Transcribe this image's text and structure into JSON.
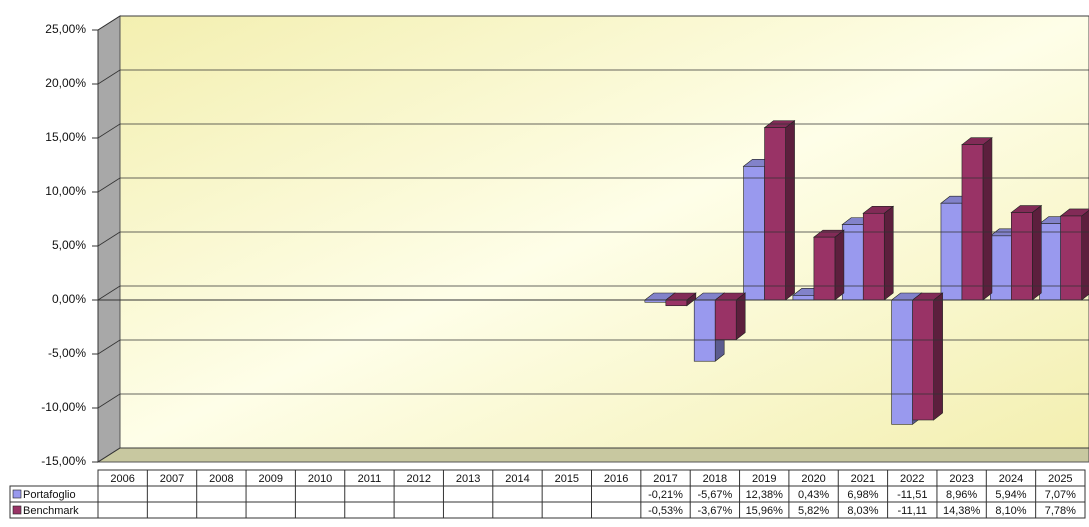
{
  "chart_data": {
    "type": "bar3d",
    "categories": [
      "2006",
      "2007",
      "2008",
      "2009",
      "2010",
      "2011",
      "2012",
      "2013",
      "2014",
      "2015",
      "2016",
      "2017",
      "2018",
      "2019",
      "2020",
      "2021",
      "2022",
      "2023",
      "2024",
      "2025"
    ],
    "series": [
      {
        "name": "Portafoglio",
        "color": "#9999ee",
        "values": [
          null,
          null,
          null,
          null,
          null,
          null,
          null,
          null,
          null,
          null,
          null,
          -0.21,
          -5.67,
          12.38,
          0.43,
          6.98,
          -11.51,
          8.96,
          5.94,
          7.07
        ],
        "value_labels": [
          null,
          null,
          null,
          null,
          null,
          null,
          null,
          null,
          null,
          null,
          null,
          "-0,21%",
          "-5,67%",
          "12,38%",
          "0,43%",
          "6,98%",
          "-11,51",
          "8,96%",
          "5,94%",
          "7,07%"
        ]
      },
      {
        "name": "Benchmark",
        "color": "#993366",
        "values": [
          null,
          null,
          null,
          null,
          null,
          null,
          null,
          null,
          null,
          null,
          null,
          -0.53,
          -3.67,
          15.96,
          5.82,
          8.03,
          -11.11,
          14.38,
          8.1,
          7.78
        ],
        "value_labels": [
          null,
          null,
          null,
          null,
          null,
          null,
          null,
          null,
          null,
          null,
          null,
          "-0,53%",
          "-3,67%",
          "15,96%",
          "5,82%",
          "8,03%",
          "-11,11",
          "14,38%",
          "8,10%",
          "7,78%"
        ]
      }
    ],
    "ylim": [
      -15,
      25
    ],
    "yticks": [
      {
        "value": -15,
        "label": "-15,00%"
      },
      {
        "value": -10,
        "label": "-10,00%"
      },
      {
        "value": -5,
        "label": "-5,00%"
      },
      {
        "value": 0,
        "label": "0,00%"
      },
      {
        "value": 5,
        "label": "5,00%"
      },
      {
        "value": 10,
        "label": "10,00%"
      },
      {
        "value": 15,
        "label": "15,00%"
      },
      {
        "value": 20,
        "label": "20,00%"
      },
      {
        "value": 25,
        "label": "25,00%"
      }
    ],
    "grid": true
  }
}
